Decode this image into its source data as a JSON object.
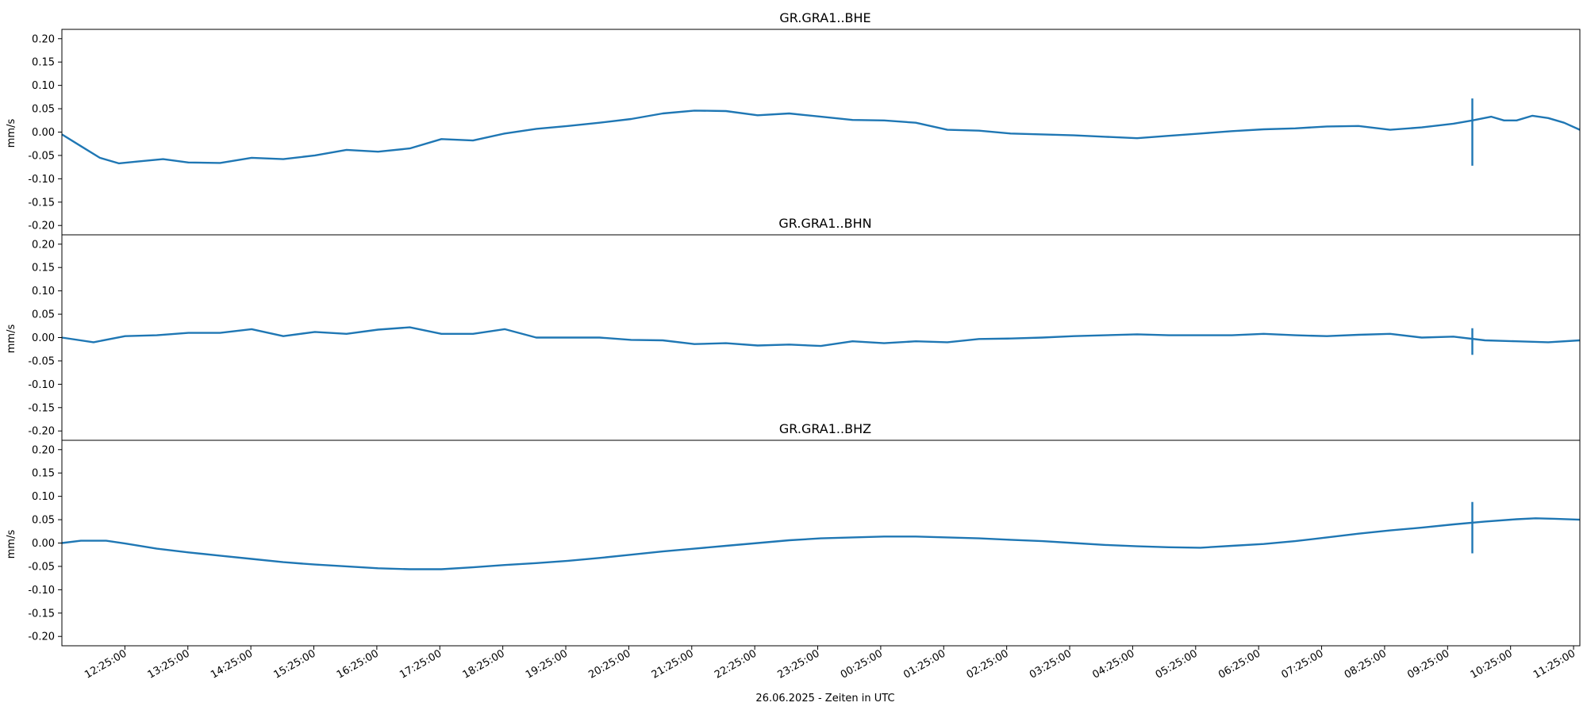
{
  "figure": {
    "xlabel": "26.06.2025 - Zeiten in UTC",
    "line_color": "#1f77b4"
  },
  "chart_data": [
    {
      "type": "line",
      "title": "GR.GRA1..BHE",
      "ylabel": "mm/s",
      "ylim": [
        -0.22,
        0.22
      ],
      "yticks": [
        "0.20",
        "0.15",
        "0.10",
        "0.05",
        "0.00",
        "-0.05",
        "-0.10",
        "-0.15",
        "-0.20"
      ],
      "x_hours": [
        0,
        0.3,
        0.6,
        0.9,
        1.2,
        1.6,
        2.0,
        2.5,
        3.0,
        3.5,
        4.0,
        4.5,
        5.0,
        5.5,
        6.0,
        6.5,
        7.0,
        7.5,
        8.0,
        8.5,
        9.0,
        9.5,
        10.0,
        10.5,
        11.0,
        11.5,
        12.0,
        12.5,
        13.0,
        13.5,
        14.0,
        14.5,
        15.0,
        15.5,
        16.0,
        16.5,
        17.0,
        17.5,
        18.0,
        18.5,
        19.0,
        19.5,
        20.0,
        20.5,
        21.0,
        21.5,
        22.0,
        22.3,
        22.6,
        22.8,
        23.0,
        23.25,
        23.5,
        23.75,
        24.0
      ],
      "values": [
        -0.005,
        -0.03,
        -0.055,
        -0.067,
        -0.063,
        -0.058,
        -0.065,
        -0.066,
        -0.055,
        -0.058,
        -0.05,
        -0.038,
        -0.042,
        -0.035,
        -0.015,
        -0.018,
        -0.003,
        0.007,
        0.013,
        0.02,
        0.028,
        0.04,
        0.046,
        0.045,
        0.036,
        0.04,
        0.033,
        0.026,
        0.025,
        0.02,
        0.005,
        0.003,
        -0.003,
        -0.005,
        -0.007,
        -0.01,
        -0.013,
        -0.008,
        -0.003,
        0.002,
        0.006,
        0.008,
        0.012,
        0.013,
        0.005,
        0.01,
        0.018,
        0.025,
        0.033,
        0.025,
        0.025,
        0.035,
        0.03,
        0.02,
        0.005
      ],
      "spike": {
        "x_hour": 22.3,
        "max": 0.072,
        "min": -0.072
      }
    },
    {
      "type": "line",
      "title": "GR.GRA1..BHN",
      "ylabel": "mm/s",
      "ylim": [
        -0.22,
        0.22
      ],
      "yticks": [
        "0.20",
        "0.15",
        "0.10",
        "0.05",
        "0.00",
        "-0.05",
        "-0.10",
        "-0.15",
        "-0.20"
      ],
      "x_hours": [
        0,
        0.5,
        1.0,
        1.5,
        2.0,
        2.5,
        3.0,
        3.5,
        4.0,
        4.5,
        5.0,
        5.5,
        6.0,
        6.5,
        7.0,
        7.5,
        8.0,
        8.5,
        9.0,
        9.5,
        10.0,
        10.5,
        11.0,
        11.5,
        12.0,
        12.5,
        13.0,
        13.5,
        14.0,
        14.5,
        15.0,
        15.5,
        16.0,
        16.5,
        17.0,
        17.5,
        18.0,
        18.5,
        19.0,
        19.5,
        20.0,
        20.5,
        21.0,
        21.5,
        22.0,
        22.5,
        23.0,
        23.5,
        24.0
      ],
      "values": [
        0.0,
        -0.01,
        0.003,
        0.005,
        0.01,
        0.01,
        0.018,
        0.003,
        0.012,
        0.008,
        0.017,
        0.022,
        0.008,
        0.008,
        0.018,
        0.0,
        0.0,
        0.0,
        -0.005,
        -0.006,
        -0.014,
        -0.012,
        -0.017,
        -0.015,
        -0.018,
        -0.008,
        -0.012,
        -0.008,
        -0.01,
        -0.003,
        -0.002,
        0.0,
        0.003,
        0.005,
        0.007,
        0.005,
        0.005,
        0.005,
        0.008,
        0.005,
        0.003,
        0.006,
        0.008,
        0.0,
        0.002,
        -0.006,
        -0.008,
        -0.01,
        -0.006
      ],
      "spike": {
        "x_hour": 22.3,
        "max": 0.02,
        "min": -0.037
      }
    },
    {
      "type": "line",
      "title": "GR.GRA1..BHZ",
      "ylabel": "mm/s",
      "ylim": [
        -0.22,
        0.22
      ],
      "yticks": [
        "0.20",
        "0.15",
        "0.10",
        "0.05",
        "0.00",
        "-0.05",
        "-0.10",
        "-0.15",
        "-0.20"
      ],
      "x_hours": [
        0,
        0.3,
        0.7,
        1.0,
        1.5,
        2.0,
        2.5,
        3.0,
        3.5,
        4.0,
        4.5,
        5.0,
        5.5,
        6.0,
        6.5,
        7.0,
        7.5,
        8.0,
        8.5,
        9.0,
        9.5,
        10.0,
        10.5,
        11.0,
        11.5,
        12.0,
        12.5,
        13.0,
        13.5,
        14.0,
        14.5,
        15.0,
        15.5,
        16.0,
        16.5,
        17.0,
        17.5,
        18.0,
        18.5,
        19.0,
        19.5,
        20.0,
        20.5,
        21.0,
        21.5,
        22.0,
        22.5,
        23.0,
        23.3,
        23.6,
        24.0
      ],
      "values": [
        0.0,
        0.005,
        0.005,
        -0.001,
        -0.012,
        -0.02,
        -0.027,
        -0.034,
        -0.041,
        -0.046,
        -0.05,
        -0.054,
        -0.056,
        -0.056,
        -0.052,
        -0.047,
        -0.043,
        -0.038,
        -0.032,
        -0.025,
        -0.018,
        -0.012,
        -0.006,
        0.0,
        0.006,
        0.01,
        0.012,
        0.014,
        0.014,
        0.012,
        0.01,
        0.007,
        0.004,
        0.0,
        -0.004,
        -0.007,
        -0.009,
        -0.01,
        -0.006,
        -0.002,
        0.004,
        0.012,
        0.02,
        0.027,
        0.033,
        0.04,
        0.046,
        0.051,
        0.053,
        0.052,
        0.05
      ],
      "spike": {
        "x_hour": 22.3,
        "max": 0.088,
        "min": -0.022
      }
    }
  ],
  "xticks": [
    "12:25:00",
    "13:25:00",
    "14:25:00",
    "15:25:00",
    "16:25:00",
    "17:25:00",
    "18:25:00",
    "19:25:00",
    "20:25:00",
    "21:25:00",
    "22:25:00",
    "23:25:00",
    "00:25:00",
    "01:25:00",
    "02:25:00",
    "03:25:00",
    "04:25:00",
    "05:25:00",
    "06:25:00",
    "07:25:00",
    "08:25:00",
    "09:25:00",
    "10:25:00",
    "11:25:00"
  ]
}
